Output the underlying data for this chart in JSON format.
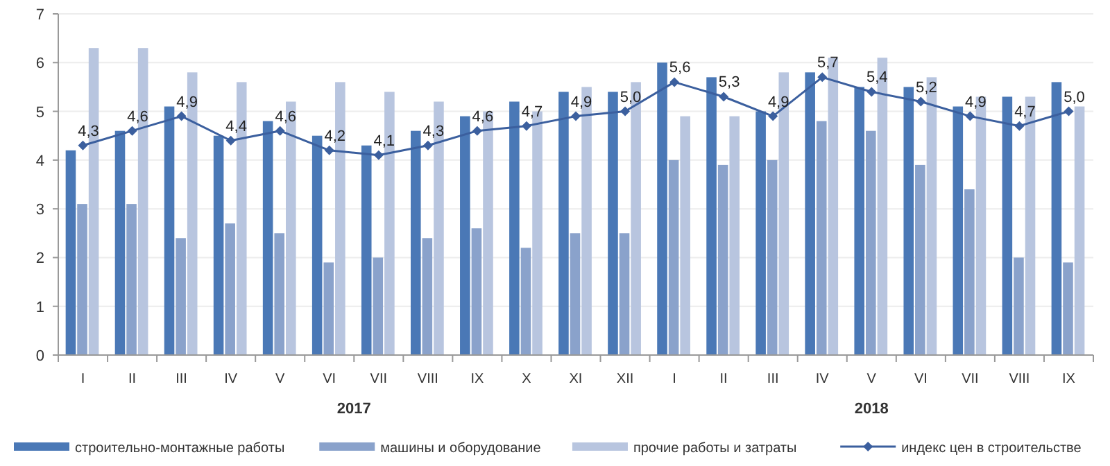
{
  "chart_data": {
    "type": "bar",
    "categories": [
      "I",
      "II",
      "III",
      "IV",
      "V",
      "VI",
      "VII",
      "VIII",
      "IX",
      "X",
      "XI",
      "XII",
      "I",
      "II",
      "III",
      "IV",
      "V",
      "VI",
      "VII",
      "VIII",
      "IX"
    ],
    "series": [
      {
        "name": "строительно-монтажные работы",
        "color": "#4a78b6",
        "values": [
          4.2,
          4.6,
          5.1,
          4.5,
          4.8,
          4.5,
          4.3,
          4.6,
          4.9,
          5.2,
          5.4,
          5.4,
          6.0,
          5.7,
          5.0,
          5.8,
          5.5,
          5.5,
          5.1,
          5.3,
          5.6
        ]
      },
      {
        "name": "машины и оборудование",
        "color": "#8aa2cb",
        "values": [
          3.1,
          3.1,
          2.4,
          2.7,
          2.5,
          1.9,
          2.0,
          2.4,
          2.6,
          2.2,
          2.5,
          2.5,
          4.0,
          3.9,
          4.0,
          4.8,
          4.6,
          3.9,
          3.4,
          2.0,
          1.9
        ]
      },
      {
        "name": "прочие работы и затраты",
        "color": "#b8c5df",
        "values": [
          6.3,
          6.3,
          5.8,
          5.6,
          5.2,
          5.6,
          5.4,
          5.2,
          5.0,
          5.0,
          5.5,
          5.6,
          4.9,
          4.9,
          5.8,
          6.1,
          6.1,
          5.7,
          5.3,
          5.3,
          5.1
        ]
      },
      {
        "name": "индекс цен в строительстве",
        "type": "line",
        "color": "#3b5f9e",
        "marker": "diamond",
        "values": [
          4.3,
          4.6,
          4.9,
          4.4,
          4.6,
          4.2,
          4.1,
          4.3,
          4.6,
          4.7,
          4.9,
          5.0,
          5.6,
          5.3,
          4.9,
          5.7,
          5.4,
          5.2,
          4.9,
          4.7,
          5.0
        ],
        "value_labels": [
          "4,3",
          "4,6",
          "4,9",
          "4,4",
          "4,6",
          "4,2",
          "4,1",
          "4,3",
          "4,6",
          "4,7",
          "4,9",
          "5,0",
          "5,6",
          "5,3",
          "4,9",
          "5,7",
          "5,4",
          "5,2",
          "4,9",
          "4,7",
          "5,0"
        ]
      }
    ],
    "ylim": [
      0,
      7
    ],
    "yticks": [
      0,
      1,
      2,
      3,
      4,
      5,
      6,
      7
    ],
    "grid": "y",
    "legend": "bottom",
    "annotations": [
      "2017",
      "2018"
    ]
  }
}
